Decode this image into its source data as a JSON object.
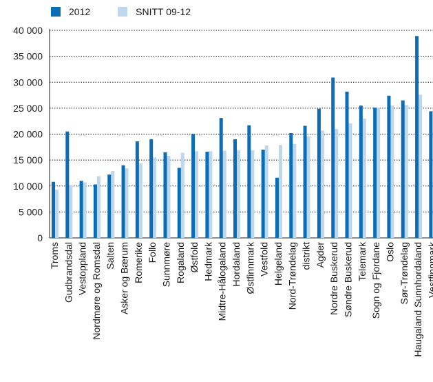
{
  "colors": {
    "series_2012": "#0a6db5",
    "series_avg": "#bcd7ee",
    "axis": "#1a1a1a",
    "grid": "#1a1a1a"
  },
  "chart_data": {
    "type": "bar",
    "categories": [
      "Troms",
      "Gudbrandsdal",
      "Vestoppland",
      "Nordmøre og Romsdal",
      "Salten",
      "Asker og Bærum",
      "Romerike",
      "Follo",
      "Sunnmøre",
      "Rogaland",
      "Østfold",
      "Hedmark",
      "Midtre-Hålogaland",
      "Hordaland",
      "Østfinnmark",
      "Vestfold",
      "Helgeland",
      "Nord-Trøndelag",
      "distrikt",
      "Agder",
      "Nordre Buskerud",
      "Søndre Buskerud",
      "Telemark",
      "Sogn og Fjordane",
      "Oslo",
      "Sør-Trøndelag",
      "Haugaland Sunnhordaland",
      "Vestfinnmark"
    ],
    "series": [
      {
        "name": "2012",
        "values": [
          10800,
          20500,
          11000,
          10300,
          12200,
          14000,
          18600,
          19000,
          16500,
          13500,
          20000,
          16600,
          23100,
          19000,
          21700,
          17000,
          11600,
          20200,
          21600,
          24900,
          30900,
          28200,
          25500,
          25100,
          27400,
          26500,
          38900,
          24400
        ]
      },
      {
        "name": "SNITT 09-12",
        "values": [
          9300,
          10200,
          10700,
          11900,
          12900,
          13400,
          14400,
          15500,
          15800,
          16400,
          16700,
          16700,
          16800,
          16900,
          16900,
          17800,
          17900,
          18100,
          19600,
          20700,
          21000,
          22100,
          23000,
          25100,
          25500,
          25600,
          27600,
          0
        ]
      }
    ],
    "ylim": [
      0,
      40000
    ],
    "yticks": [
      0,
      5000,
      10000,
      15000,
      20000,
      25000,
      30000,
      35000,
      40000
    ],
    "ytick_labels": [
      "0",
      "5 000",
      "10 000",
      "15 000",
      "20 000",
      "25 000",
      "30 000",
      "35 000",
      "40 000"
    ],
    "grid": "dotted horizontal",
    "legend": "top-left",
    "title": "",
    "xlabel": "",
    "ylabel": ""
  }
}
